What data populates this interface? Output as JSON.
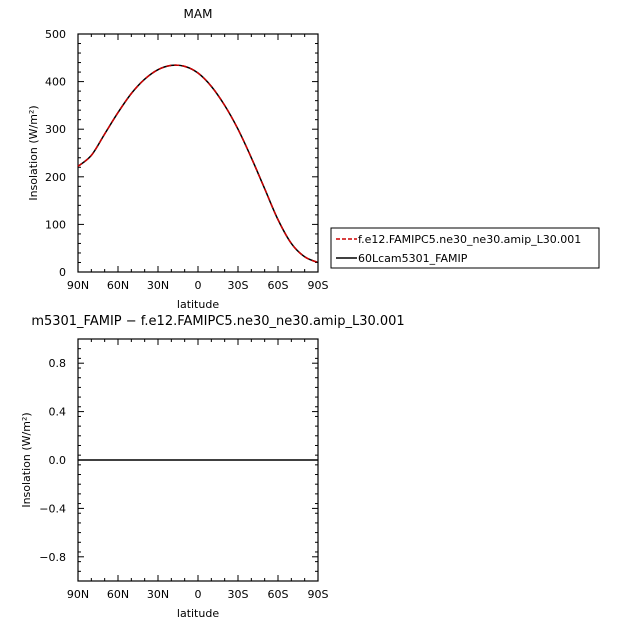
{
  "chart_data": [
    {
      "type": "line",
      "title": "MAM",
      "xlabel": "latitude",
      "ylabel": "Insolation (W/m²)",
      "xlim": [
        90,
        -90
      ],
      "ylim": [
        0,
        500
      ],
      "xticks": [
        90,
        60,
        30,
        0,
        -30,
        -60,
        -90
      ],
      "xtick_labels": [
        "90N",
        "60N",
        "30N",
        "0",
        "30S",
        "60S",
        "90S"
      ],
      "yticks": [
        0,
        100,
        200,
        300,
        400,
        500
      ],
      "ytick_labels": [
        "0",
        "100",
        "200",
        "300",
        "400",
        "500"
      ],
      "x": [
        90,
        80,
        70,
        60,
        50,
        40,
        30,
        20,
        10,
        0,
        -10,
        -20,
        -30,
        -40,
        -50,
        -60,
        -70,
        -80,
        -90
      ],
      "series": [
        {
          "name": "f.e12.FAMIPC5.ne30_ne30.amip_L30.001",
          "color": "#cc0000",
          "dash": true,
          "values": [
            222,
            245,
            290,
            335,
            375,
            405,
            425,
            434,
            432,
            418,
            390,
            350,
            300,
            240,
            175,
            110,
            60,
            32,
            20
          ]
        },
        {
          "name": "60Lcam5301_FAMIP",
          "color": "#000000",
          "dash": false,
          "values": [
            222,
            245,
            290,
            335,
            375,
            405,
            425,
            434,
            432,
            418,
            390,
            350,
            300,
            240,
            175,
            110,
            60,
            32,
            20
          ]
        }
      ],
      "legend": "right"
    },
    {
      "type": "line",
      "title": "m5301_FAMIP − f.e12.FAMIPC5.ne30_ne30.amip_L30.001",
      "xlabel": "latitude",
      "ylabel": "Insolation (W/m²)",
      "xlim": [
        90,
        -90
      ],
      "ylim": [
        -1,
        1
      ],
      "xticks": [
        90,
        60,
        30,
        0,
        -30,
        -60,
        -90
      ],
      "xtick_labels": [
        "90N",
        "60N",
        "30N",
        "0",
        "30S",
        "60S",
        "90S"
      ],
      "yticks": [
        0.8,
        0.4,
        0.0,
        -0.4,
        -0.8
      ],
      "ytick_labels": [
        "0.8",
        "0.4",
        "0.0",
        "−0.4",
        "−0.8"
      ],
      "x": [
        90,
        -90
      ],
      "series": [
        {
          "color": "#000000",
          "values": [
            0,
            0
          ]
        }
      ]
    }
  ]
}
